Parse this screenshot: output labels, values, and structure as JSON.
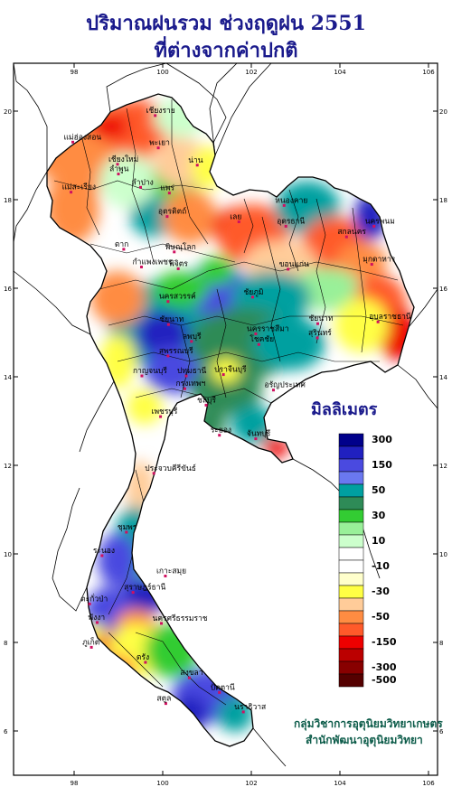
{
  "title": {
    "line1": "ปริมาณฝนรวม ช่วงฤดูฝน 2551",
    "line2": "ที่ต่างจากค่าปกติ"
  },
  "legend": {
    "unit": "มิลลิเมตร",
    "bins": [
      {
        "color": "#00008b",
        "label": "300"
      },
      {
        "color": "#2020c0",
        "label": ""
      },
      {
        "color": "#4a4ae0",
        "label": "150"
      },
      {
        "color": "#6a78f0",
        "label": ""
      },
      {
        "color": "#00a0a0",
        "label": "50"
      },
      {
        "color": "#2e8b57",
        "label": ""
      },
      {
        "color": "#33cc33",
        "label": "30"
      },
      {
        "color": "#99f099",
        "label": ""
      },
      {
        "color": "#ccffcc",
        "label": "10"
      },
      {
        "color": "#ffffff",
        "label": ""
      },
      {
        "color": "#ffffff",
        "label": "-10"
      },
      {
        "color": "#ffffcc",
        "label": ""
      },
      {
        "color": "#ffff44",
        "label": "-30"
      },
      {
        "color": "#ffcc99",
        "label": ""
      },
      {
        "color": "#ff8c42",
        "label": "-50"
      },
      {
        "color": "#ff5a2a",
        "label": ""
      },
      {
        "color": "#ee0000",
        "label": "-150"
      },
      {
        "color": "#bb0000",
        "label": ""
      },
      {
        "color": "#880000",
        "label": "-300"
      },
      {
        "color": "#550000",
        "label": "-500"
      }
    ]
  },
  "axes": {
    "lon_ticks": [
      "98",
      "100",
      "102",
      "104",
      "106"
    ],
    "lat_ticks": [
      "20",
      "18",
      "16",
      "14",
      "12",
      "10",
      "8",
      "6"
    ]
  },
  "places": [
    {
      "name": "เชียงราย",
      "lon": 99.83,
      "lat": 19.9
    },
    {
      "name": "แม่ฮ่องสอน",
      "lon": 97.97,
      "lat": 19.3
    },
    {
      "name": "พะเยา",
      "lon": 99.9,
      "lat": 19.17
    },
    {
      "name": "เชียงใหม่",
      "lon": 98.98,
      "lat": 18.8
    },
    {
      "name": "ลำพูน",
      "lon": 99.0,
      "lat": 18.58
    },
    {
      "name": "น่าน",
      "lon": 100.78,
      "lat": 18.78
    },
    {
      "name": "ลำปาง",
      "lon": 99.5,
      "lat": 18.28
    },
    {
      "name": "แพร่",
      "lon": 100.15,
      "lat": 18.15
    },
    {
      "name": "แม่สะเรียง",
      "lon": 97.93,
      "lat": 18.17
    },
    {
      "name": "อุตรดิตถ์",
      "lon": 100.1,
      "lat": 17.62
    },
    {
      "name": "เลย",
      "lon": 101.72,
      "lat": 17.5
    },
    {
      "name": "หนองคาย",
      "lon": 102.74,
      "lat": 17.87
    },
    {
      "name": "อุดรธานี",
      "lon": 102.78,
      "lat": 17.4
    },
    {
      "name": "นครพนม",
      "lon": 104.77,
      "lat": 17.4
    },
    {
      "name": "สกลนคร",
      "lon": 104.15,
      "lat": 17.16
    },
    {
      "name": "ตาก",
      "lon": 99.12,
      "lat": 16.88
    },
    {
      "name": "พิษณุโลก",
      "lon": 100.26,
      "lat": 16.82
    },
    {
      "name": "มุกดาหาร",
      "lon": 104.72,
      "lat": 16.54
    },
    {
      "name": "กำแพงเพชร",
      "lon": 99.52,
      "lat": 16.48
    },
    {
      "name": "พิจิตร",
      "lon": 100.35,
      "lat": 16.44
    },
    {
      "name": "ขอนแก่น",
      "lon": 102.83,
      "lat": 16.43
    },
    {
      "name": "นครสวรรค์",
      "lon": 100.12,
      "lat": 15.7
    },
    {
      "name": "ชัยภูมิ",
      "lon": 102.03,
      "lat": 15.8
    },
    {
      "name": "อุบลราชธานี",
      "lon": 104.86,
      "lat": 15.24
    },
    {
      "name": "ชัยนาท",
      "lon": 100.13,
      "lat": 15.18
    },
    {
      "name": "ลพบุรี",
      "lon": 100.65,
      "lat": 14.8
    },
    {
      "name": "นครราชสีมา",
      "lon": 102.1,
      "lat": 14.97
    },
    {
      "name": "ชัยนาท",
      "lon": 103.5,
      "lat": 15.2
    },
    {
      "name": "สุพรรณบุรี",
      "lon": 100.12,
      "lat": 14.47
    },
    {
      "name": "กาญจนบุรี",
      "lon": 99.53,
      "lat": 14.02
    },
    {
      "name": "ปทุมธานี",
      "lon": 100.53,
      "lat": 14.02
    },
    {
      "name": "โชคชัย",
      "lon": 102.17,
      "lat": 14.73
    },
    {
      "name": "สุรินทร์",
      "lon": 103.49,
      "lat": 14.88
    },
    {
      "name": "ปราจีนบุรี",
      "lon": 101.37,
      "lat": 14.05
    },
    {
      "name": "อรัญประเทศ",
      "lon": 102.5,
      "lat": 13.7
    },
    {
      "name": "กรุงเทพฯ",
      "lon": 100.5,
      "lat": 13.73
    },
    {
      "name": "ชลบุรี",
      "lon": 100.98,
      "lat": 13.36
    },
    {
      "name": "เพชรบุรี",
      "lon": 99.95,
      "lat": 13.1
    },
    {
      "name": "ระยอง",
      "lon": 101.28,
      "lat": 12.68
    },
    {
      "name": "จันทบุรี",
      "lon": 102.1,
      "lat": 12.6
    },
    {
      "name": "ประจวบคีรีขันธ์",
      "lon": 99.8,
      "lat": 11.82
    },
    {
      "name": "ชุมพร",
      "lon": 99.18,
      "lat": 10.49
    },
    {
      "name": "ระนอง",
      "lon": 98.63,
      "lat": 9.96
    },
    {
      "name": "เกาะสมุย",
      "lon": 100.06,
      "lat": 9.5
    },
    {
      "name": "สุราษฎร์ธานี",
      "lon": 99.33,
      "lat": 9.13
    },
    {
      "name": "ตะกั่วป่า",
      "lon": 98.35,
      "lat": 8.87
    },
    {
      "name": "พังงา",
      "lon": 98.52,
      "lat": 8.45
    },
    {
      "name": "นครศรีธรรมราช",
      "lon": 99.97,
      "lat": 8.43
    },
    {
      "name": "ภูเก็ต",
      "lon": 98.39,
      "lat": 7.89
    },
    {
      "name": "ตรัง",
      "lon": 99.61,
      "lat": 7.55
    },
    {
      "name": "สงขลา",
      "lon": 100.6,
      "lat": 7.2
    },
    {
      "name": "ปัตตานี",
      "lon": 101.28,
      "lat": 6.87
    },
    {
      "name": "นราธิวาส",
      "lon": 101.82,
      "lat": 6.43
    },
    {
      "name": "สตูล",
      "lon": 100.07,
      "lat": 6.62
    }
  ],
  "credit": {
    "line1": "กลุ่มวิชาการอุตุนิยมวิทยาเกษตร",
    "line2": "สำนักพัฒนาอุตุนิยมวิทยา"
  }
}
